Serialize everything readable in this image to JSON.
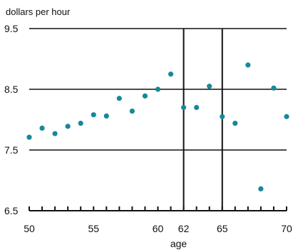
{
  "chart_data": {
    "type": "scatter",
    "ylabel": "dollars per hour",
    "xlabel": "age",
    "xlim": [
      50,
      70
    ],
    "ylim": [
      6.5,
      9.5
    ],
    "x_ticks": [
      50,
      55,
      60,
      62,
      65,
      70
    ],
    "y_ticks": [
      6.5,
      7.5,
      8.5,
      9.5
    ],
    "reference_lines_x": [
      62,
      65
    ],
    "grid": "horizontal",
    "marker_color": "#17889a",
    "line_color": "#111111",
    "series": [
      {
        "points": [
          {
            "x": 50,
            "y": 7.71
          },
          {
            "x": 51,
            "y": 7.86
          },
          {
            "x": 52,
            "y": 7.77
          },
          {
            "x": 53,
            "y": 7.89
          },
          {
            "x": 54,
            "y": 7.94
          },
          {
            "x": 55,
            "y": 8.08
          },
          {
            "x": 56,
            "y": 8.06
          },
          {
            "x": 57,
            "y": 8.35
          },
          {
            "x": 58,
            "y": 8.14
          },
          {
            "x": 59,
            "y": 8.39
          },
          {
            "x": 60,
            "y": 8.5
          },
          {
            "x": 61,
            "y": 8.75
          },
          {
            "x": 62,
            "y": 8.2
          },
          {
            "x": 63,
            "y": 8.2
          },
          {
            "x": 64,
            "y": 8.55
          },
          {
            "x": 65,
            "y": 8.05
          },
          {
            "x": 66,
            "y": 7.94
          },
          {
            "x": 67,
            "y": 8.9
          },
          {
            "x": 68,
            "y": 6.86
          },
          {
            "x": 69,
            "y": 8.52
          },
          {
            "x": 70,
            "y": 8.05
          }
        ]
      }
    ]
  }
}
